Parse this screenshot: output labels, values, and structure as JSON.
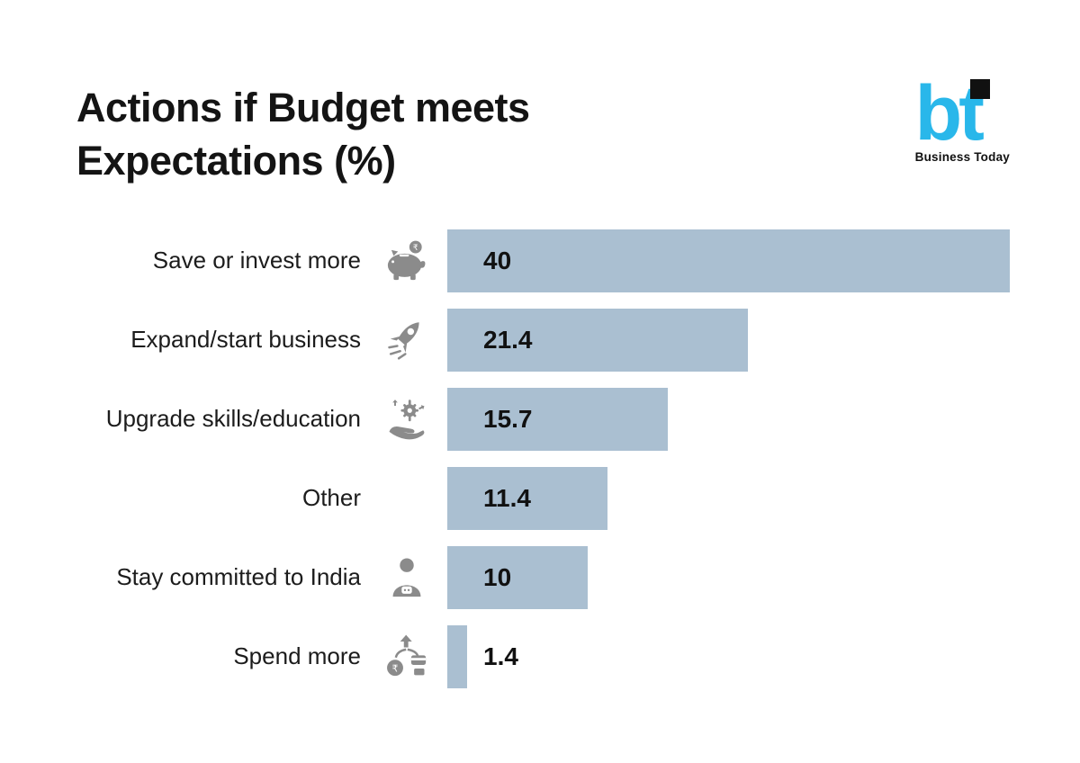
{
  "header": {
    "title_lines": [
      "Actions if Budget meets",
      "Expectations (%)"
    ]
  },
  "logo": {
    "mark": "bt",
    "caption": "Business Today"
  },
  "chart_data": {
    "type": "bar",
    "orientation": "horizontal",
    "title": "Actions if Budget meets Expectations (%)",
    "categories": [
      "Save or invest more",
      "Expand/start business",
      "Upgrade skills/education",
      "Other",
      "Stay committed to India",
      "Spend more"
    ],
    "values": [
      40,
      21.4,
      15.7,
      11.4,
      10,
      1.4
    ],
    "value_labels": [
      "40",
      "21.4",
      "15.7",
      "11.4",
      "10",
      "1.4"
    ],
    "icons": [
      "piggy-bank-icon",
      "rocket-icon",
      "skills-hand-icon",
      null,
      "person-icon",
      "spend-icon"
    ],
    "xlabel": "",
    "ylabel": "",
    "xlim": [
      0,
      40
    ],
    "grid": false,
    "legend": false,
    "bar_color": "#aabfd1",
    "value_color": "#111111",
    "icon_color": "#8b8b8b"
  }
}
